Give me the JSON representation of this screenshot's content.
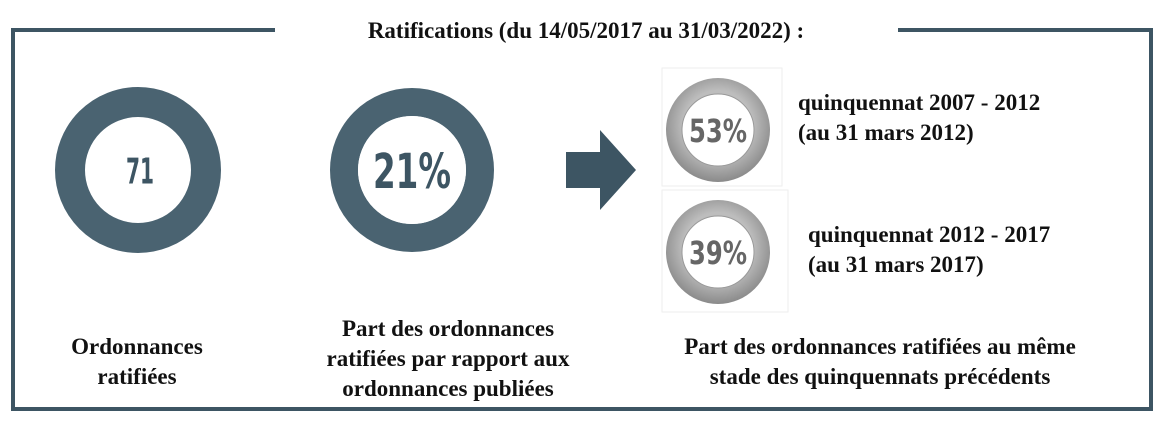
{
  "title": "Ratifications (du 14/05/2017 au 31/03/2022) :",
  "items": [
    {
      "value": "71",
      "label": [
        "Ordonnances",
        "ratifiées"
      ]
    },
    {
      "value": "21%",
      "label": [
        "Part des ordonnances",
        "ratifiées par rapport aux",
        "ordonnances publiées"
      ]
    }
  ],
  "comparisons": [
    {
      "value": "53%",
      "label": [
        "quinquennat 2007 - 2012",
        "(au 31 mars 2012)"
      ]
    },
    {
      "value": "39%",
      "label": [
        "quinquennat 2012 - 2017",
        "(au 31 mars 2017)"
      ]
    }
  ],
  "comparison_caption": [
    "Part des ordonnances ratifiées au même",
    "stade des quinquennats précédents"
  ]
}
